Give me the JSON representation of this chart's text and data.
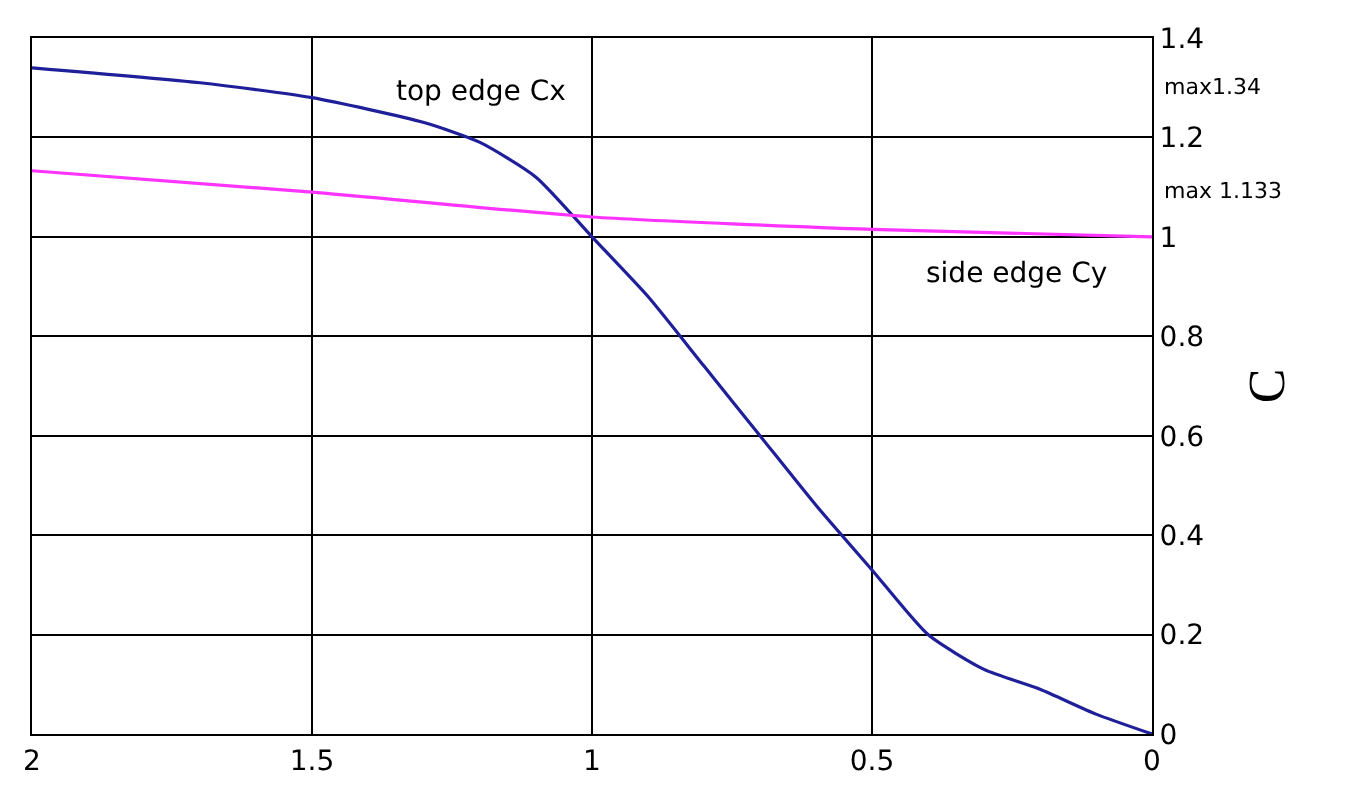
{
  "chart_data": {
    "type": "line",
    "ylabel": "C",
    "x": [
      2,
      1.7,
      1.5,
      1.3,
      1.2,
      1.1,
      1.0,
      0.9,
      0.8,
      0.7,
      0.6,
      0.5,
      0.4,
      0.3,
      0.2,
      0.1,
      0
    ],
    "series": [
      {
        "color": "#1f1f9a",
        "values": [
          1.34,
          1.31,
          1.28,
          1.23,
          1.19,
          1.12,
          1.0,
          0.88,
          0.74,
          0.6,
          0.46,
          0.33,
          0.2,
          0.13,
          0.09,
          0.04,
          0
        ]
      },
      {
        "color": "#ff33ff",
        "x": [
          2,
          1.5,
          1,
          0.5,
          0
        ],
        "values": [
          1.133,
          1.09,
          1.04,
          1.015,
          1.0
        ]
      }
    ],
    "xlim": [
      2,
      0
    ],
    "xticks": [
      2,
      1.5,
      1,
      0.5,
      0
    ],
    "ylim": [
      0,
      1.4
    ],
    "yticks": [
      0,
      0.2,
      0.4,
      0.6,
      0.8,
      1,
      1.2,
      1.4
    ],
    "grid": true,
    "legend": false,
    "marker": "none",
    "line_style": "solid",
    "annotations": [
      "top edge Cx",
      "side edge Cy",
      "max1.34",
      "max 1.133"
    ]
  }
}
